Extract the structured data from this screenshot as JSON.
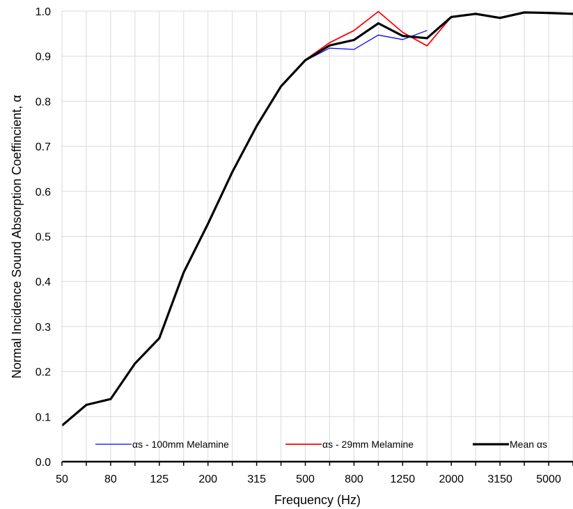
{
  "chart_data": {
    "type": "line",
    "xlabel": "Frequency (Hz)",
    "ylabel": "Normal Incidence Sound Absorption Coeffincient, α",
    "ylim": [
      0,
      1
    ],
    "yticks": [
      "0.0",
      "0.1",
      "0.2",
      "0.3",
      "0.4",
      "0.5",
      "0.6",
      "0.7",
      "0.8",
      "0.9",
      "1.0"
    ],
    "x_tick_labels": [
      "50",
      "80",
      "125",
      "200",
      "315",
      "500",
      "800",
      "1250",
      "2000",
      "3150",
      "5000"
    ],
    "x": [
      "50",
      "63",
      "80",
      "100",
      "125",
      "160",
      "200",
      "250",
      "315",
      "400",
      "500",
      "630",
      "800",
      "1000",
      "1250",
      "1600",
      "2000",
      "2500",
      "3150",
      "4000",
      "5000",
      "6300"
    ],
    "grid": true,
    "legend_position": "bottom",
    "series": [
      {
        "name": "αs - 100mm Melamine",
        "color": "#0000ff",
        "values": [
          0.08,
          0.126,
          0.139,
          0.218,
          0.274,
          0.42,
          0.528,
          0.643,
          0.745,
          0.833,
          0.89,
          0.918,
          0.915,
          0.947,
          0.937,
          0.957,
          null,
          null,
          null,
          null,
          null,
          null
        ]
      },
      {
        "name": "αs - 29mm Melamine",
        "color": "#ff0000",
        "values": [
          0.08,
          0.126,
          0.139,
          0.218,
          0.274,
          0.42,
          0.528,
          0.643,
          0.745,
          0.833,
          0.892,
          0.93,
          0.957,
          0.999,
          0.953,
          0.923,
          0.987,
          0.994,
          0.985,
          0.997,
          0.996,
          0.994
        ]
      },
      {
        "name": "Mean αs",
        "color": "#000000",
        "values": [
          0.08,
          0.126,
          0.139,
          0.218,
          0.274,
          0.42,
          0.528,
          0.643,
          0.745,
          0.833,
          0.891,
          0.924,
          0.936,
          0.973,
          0.945,
          0.94,
          0.987,
          0.994,
          0.985,
          0.997,
          0.996,
          0.994
        ]
      }
    ]
  }
}
